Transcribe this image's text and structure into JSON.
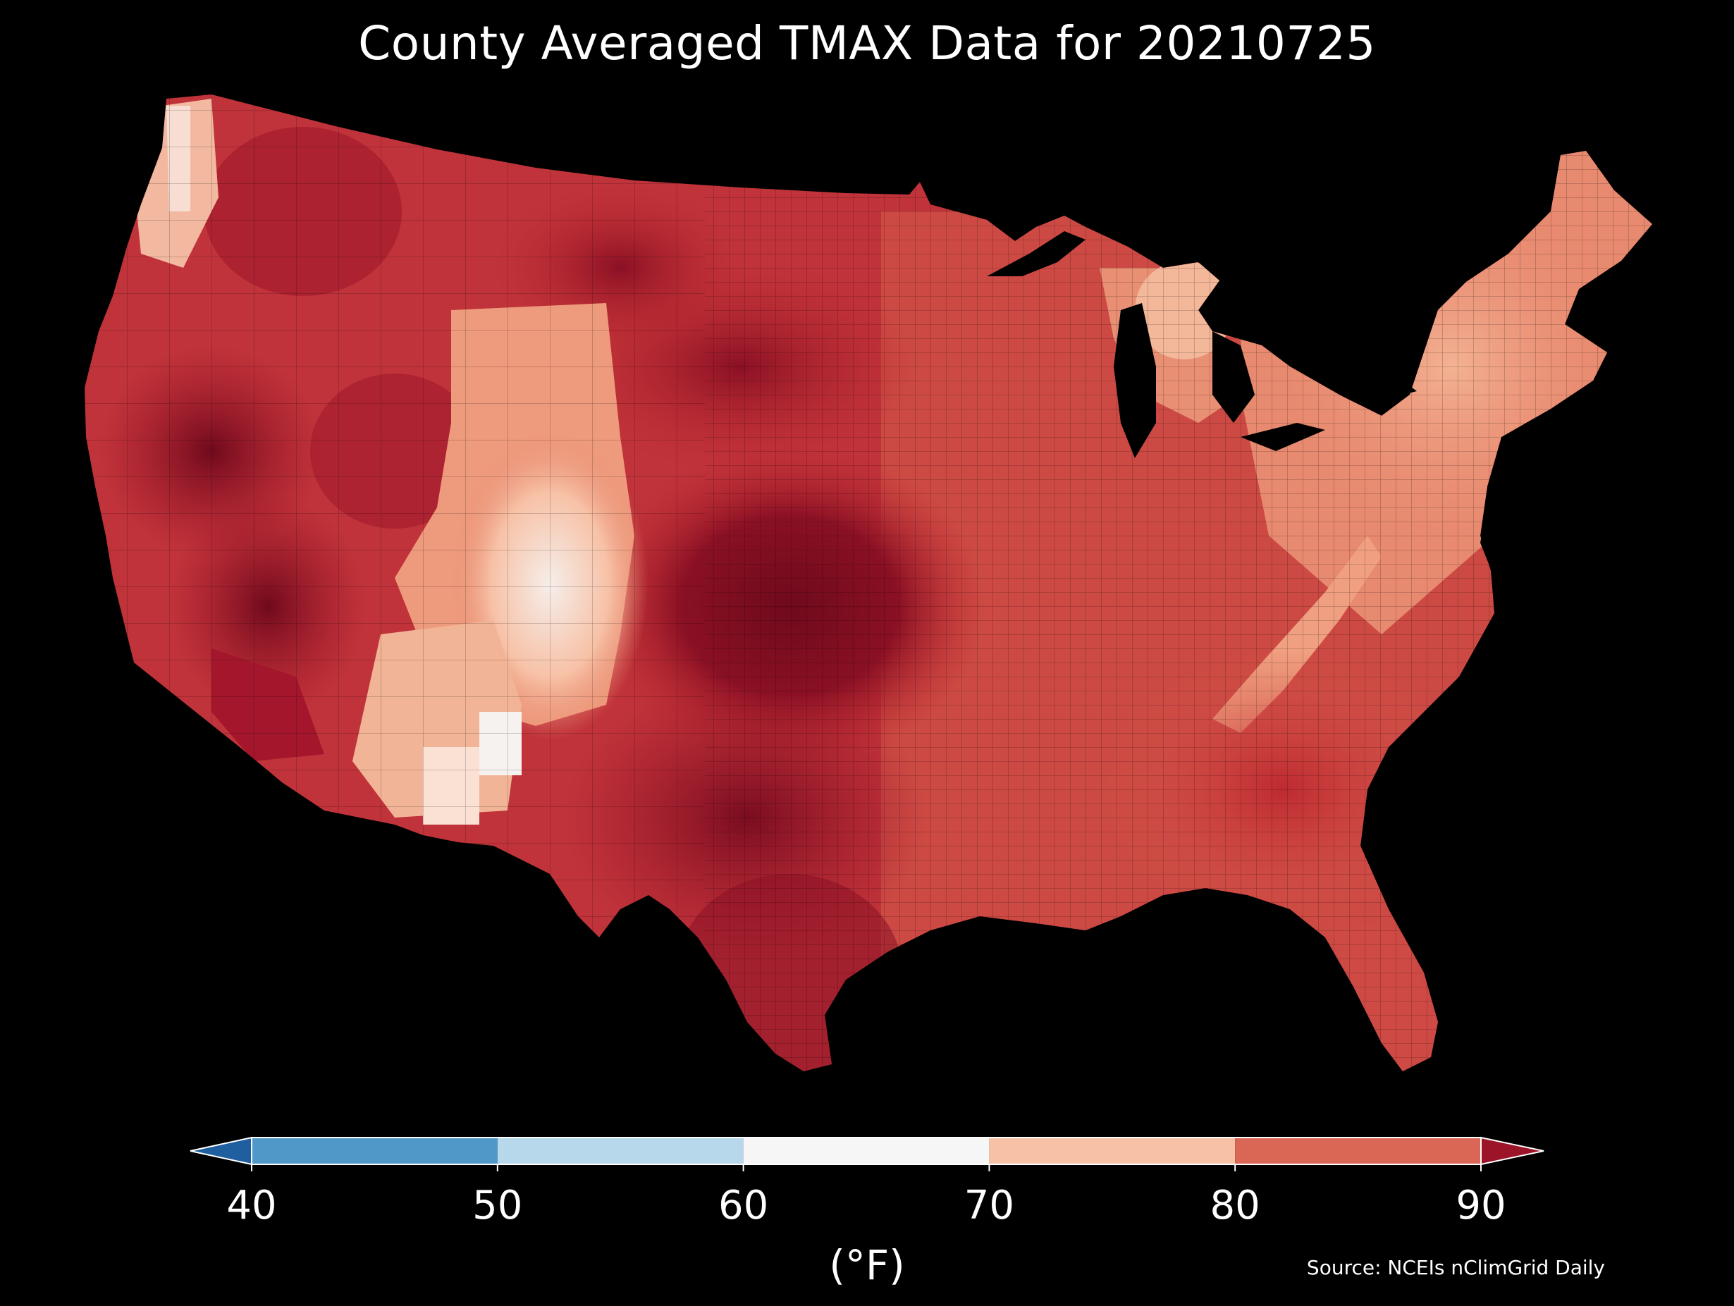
{
  "title": "County Averaged TMAX Data for 20210725",
  "colorbar": {
    "ticks": [
      "40",
      "50",
      "60",
      "70",
      "80",
      "90"
    ],
    "tick_values": [
      40,
      50,
      60,
      70,
      80,
      90
    ],
    "bins": [
      {
        "from": 40,
        "to": 50,
        "color": "#4f98c7"
      },
      {
        "from": 50,
        "to": 60,
        "color": "#b7d8ea"
      },
      {
        "from": 60,
        "to": 70,
        "color": "#f6f6f6"
      },
      {
        "from": 70,
        "to": 80,
        "color": "#f7c1a6"
      },
      {
        "from": 80,
        "to": 90,
        "color": "#da6656"
      }
    ],
    "under_color": "#1f5f9f",
    "over_color": "#9b1428",
    "label": "(°F)"
  },
  "source": "Source: NCEIs nClimGrid Daily",
  "map": {
    "region": "Contiguous United States, county level",
    "palette": {
      "hot": "#6f0a1c",
      "very_warm": "#9b1428",
      "warm": "#be2a30",
      "mild": "#d7584b",
      "moderate": "#e88a70",
      "cool": "#f7c1a6",
      "coolest": "#f4f0ee",
      "water": "#000000"
    }
  }
}
